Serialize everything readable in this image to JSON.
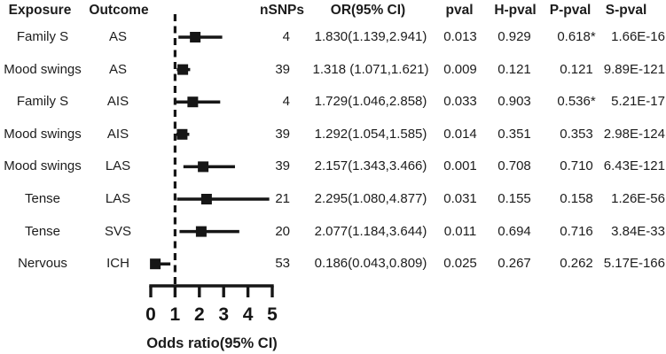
{
  "colors": {
    "foreground": "#1c1c1c",
    "plot_ink": "#161616",
    "background": "#ffffff"
  },
  "table": {
    "columns": [
      {
        "key": "exposure",
        "label": "Exposure"
      },
      {
        "key": "outcome",
        "label": "Outcome"
      },
      {
        "key": "nsnps",
        "label": "nSNPs"
      },
      {
        "key": "or_ci",
        "label": "OR(95% CI)"
      },
      {
        "key": "pval",
        "label": "pval"
      },
      {
        "key": "h_pval",
        "label": "H-pval"
      },
      {
        "key": "p_pval",
        "label": "P-pval"
      },
      {
        "key": "s_pval",
        "label": "S-pval"
      }
    ],
    "rows": [
      {
        "exposure": "Family S",
        "outcome": "AS",
        "nsnps": "4",
        "or_ci": "1.830(1.139,2.941)",
        "pval": "0.013",
        "h_pval": "0.929",
        "p_pval": "0.618*",
        "s_pval": "1.66E-16"
      },
      {
        "exposure": "Mood swings",
        "outcome": "AS",
        "nsnps": "39",
        "or_ci": "1.318 (1.071,1.621)",
        "pval": "0.009",
        "h_pval": "0.121",
        "p_pval": "0.121",
        "s_pval": "9.89E-121"
      },
      {
        "exposure": "Family S",
        "outcome": "AIS",
        "nsnps": "4",
        "or_ci": "1.729(1.046,2.858)",
        "pval": "0.033",
        "h_pval": "0.903",
        "p_pval": "0.536*",
        "s_pval": "5.21E-17"
      },
      {
        "exposure": "Mood swings",
        "outcome": "AIS",
        "nsnps": "39",
        "or_ci": "1.292(1.054,1.585)",
        "pval": "0.014",
        "h_pval": "0.351",
        "p_pval": "0.353",
        "s_pval": "2.98E-124"
      },
      {
        "exposure": "Mood swings",
        "outcome": "LAS",
        "nsnps": "39",
        "or_ci": "2.157(1.343,3.466)",
        "pval": "0.001",
        "h_pval": "0.708",
        "p_pval": "0.710",
        "s_pval": "6.43E-121"
      },
      {
        "exposure": "Tense",
        "outcome": "LAS",
        "nsnps": "21",
        "or_ci": "2.295(1.080,4.877)",
        "pval": "0.031",
        "h_pval": "0.155",
        "p_pval": "0.158",
        "s_pval": "1.26E-56"
      },
      {
        "exposure": "Tense",
        "outcome": "SVS",
        "nsnps": "20",
        "or_ci": "2.077(1.184,3.644)",
        "pval": "0.011",
        "h_pval": "0.694",
        "p_pval": "0.716",
        "s_pval": "3.84E-33"
      },
      {
        "exposure": "Nervous",
        "outcome": "ICH",
        "nsnps": "53",
        "or_ci": "0.186(0.043,0.809)",
        "pval": "0.025",
        "h_pval": "0.267",
        "p_pval": "0.262",
        "s_pval": "5.17E-166"
      }
    ]
  },
  "chart_data": {
    "type": "scatter",
    "subtype": "forest-plot-with-error-bars",
    "xlabel": "Odds ratio(95% CI)",
    "xlim": [
      0,
      5
    ],
    "x_ticks": [
      0,
      1,
      2,
      3,
      4,
      5
    ],
    "reference_line_x": 1,
    "reference_line_style": "dashed",
    "marker": "black-square",
    "points": [
      {
        "exposure": "Family S",
        "outcome": "AS",
        "nsnps": 4,
        "or": 1.83,
        "ci_low": 1.139,
        "ci_high": 2.941
      },
      {
        "exposure": "Mood swings",
        "outcome": "AS",
        "nsnps": 39,
        "or": 1.318,
        "ci_low": 1.071,
        "ci_high": 1.621
      },
      {
        "exposure": "Family S",
        "outcome": "AIS",
        "nsnps": 4,
        "or": 1.729,
        "ci_low": 1.046,
        "ci_high": 2.858
      },
      {
        "exposure": "Mood swings",
        "outcome": "AIS",
        "nsnps": 39,
        "or": 1.292,
        "ci_low": 1.054,
        "ci_high": 1.585
      },
      {
        "exposure": "Mood swings",
        "outcome": "LAS",
        "nsnps": 39,
        "or": 2.157,
        "ci_low": 1.343,
        "ci_high": 3.466
      },
      {
        "exposure": "Tense",
        "outcome": "LAS",
        "nsnps": 21,
        "or": 2.295,
        "ci_low": 1.08,
        "ci_high": 4.877
      },
      {
        "exposure": "Tense",
        "outcome": "SVS",
        "nsnps": 20,
        "or": 2.077,
        "ci_low": 1.184,
        "ci_high": 3.644
      },
      {
        "exposure": "Nervous",
        "outcome": "ICH",
        "nsnps": 53,
        "or": 0.186,
        "ci_low": 0.043,
        "ci_high": 0.809
      }
    ]
  }
}
